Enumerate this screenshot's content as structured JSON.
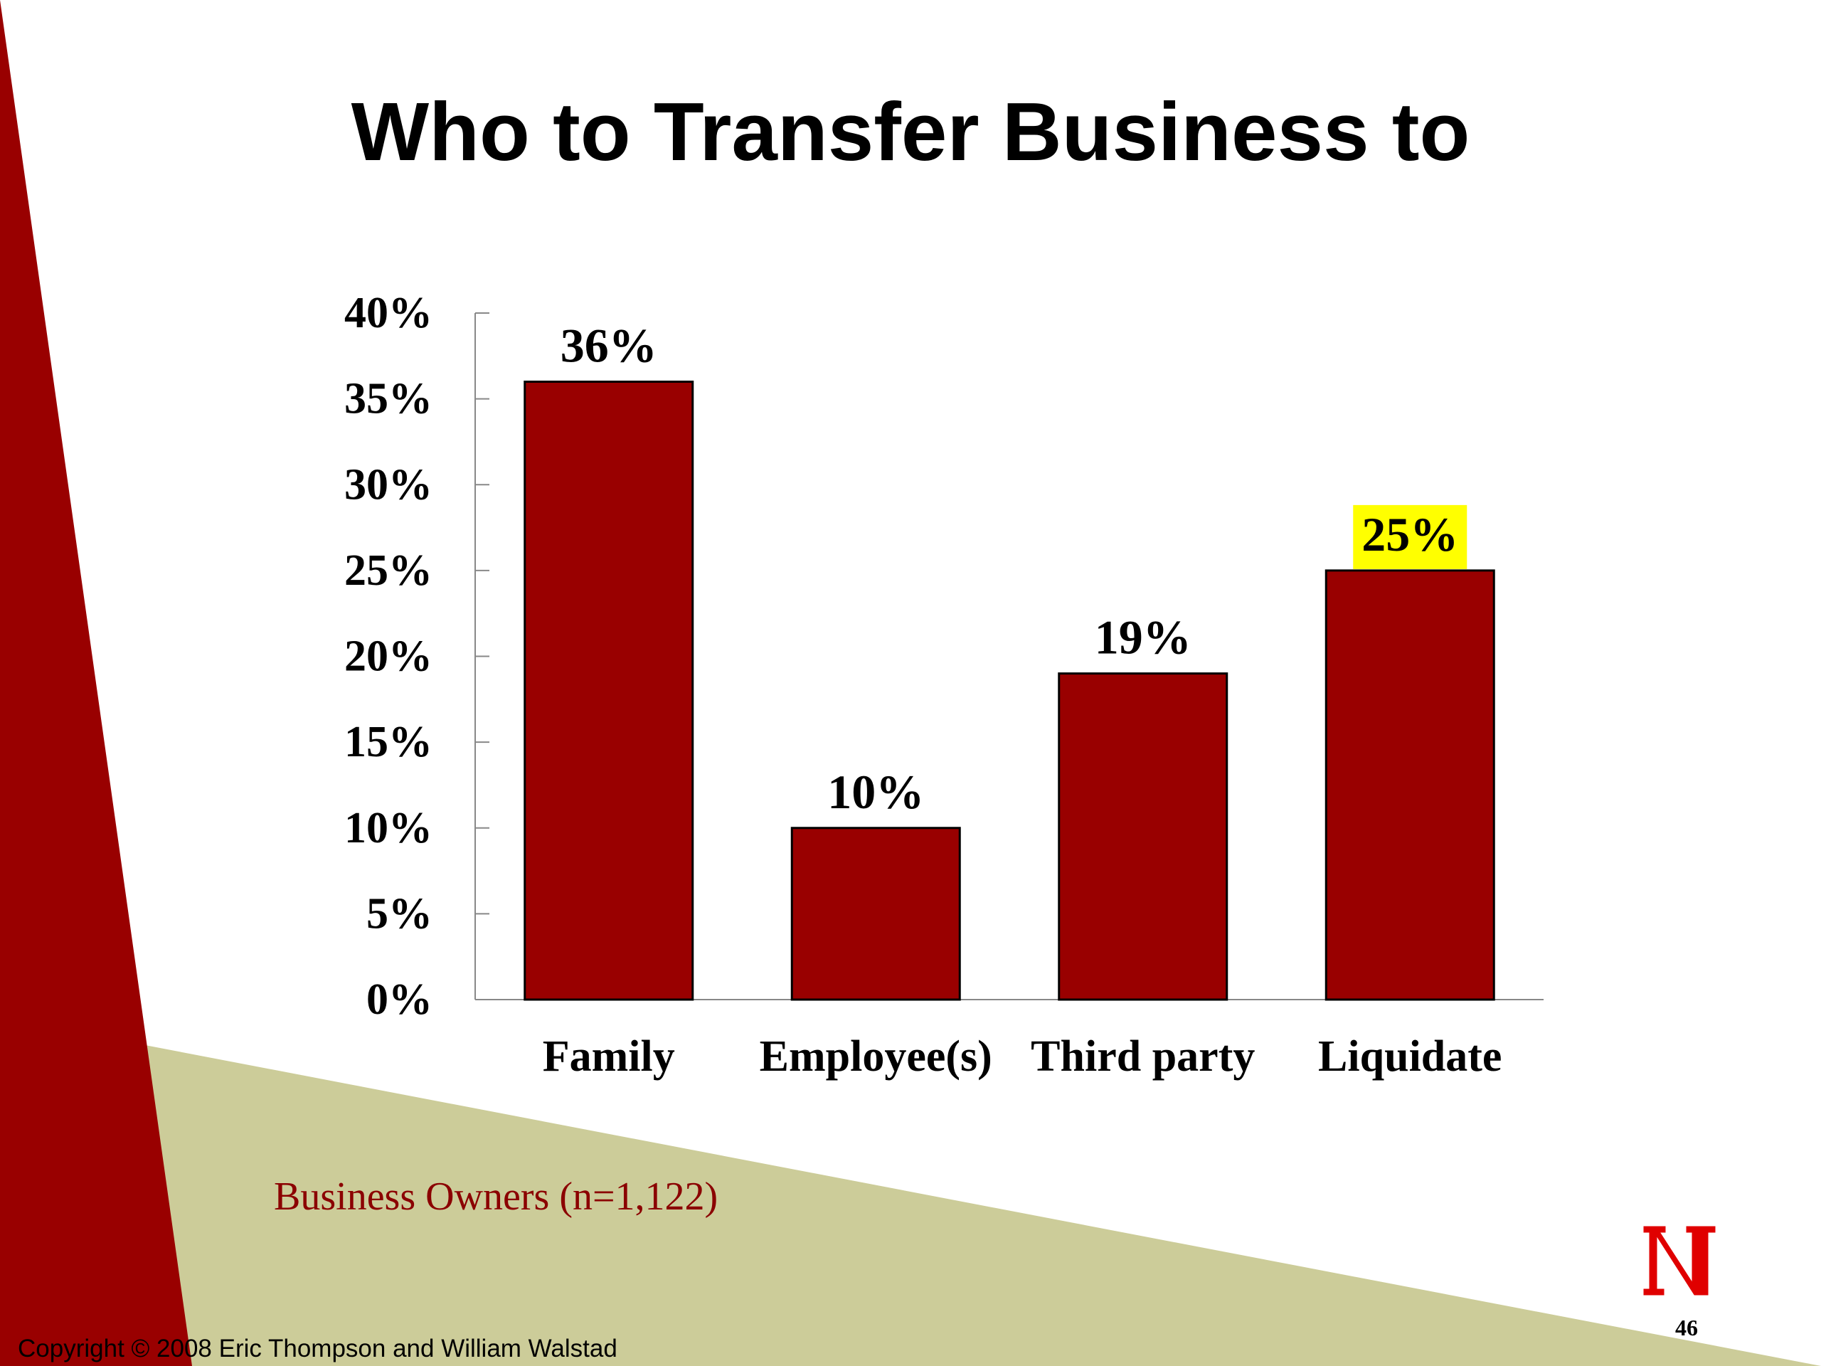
{
  "slide": {
    "title": "Who to Transfer Business to",
    "caption": "Business Owners (n=1,122)",
    "page_number": "46",
    "copyright": "Copyright © 2008 Eric Thompson and William Walstad",
    "logo_text": "N"
  },
  "colors": {
    "bar": "#990000",
    "highlight": "#ffff00",
    "left_band": "#990000",
    "bottom_band": "#cccc99",
    "caption": "#8b0000"
  },
  "chart_data": {
    "type": "bar",
    "title": "",
    "xlabel": "",
    "ylabel": "",
    "categories": [
      "Family",
      "Employee(s)",
      "Third party",
      "Liquidate"
    ],
    "values": [
      36,
      10,
      19,
      25
    ],
    "data_labels": [
      "36%",
      "10%",
      "19%",
      "25%"
    ],
    "highlighted_label_index": 3,
    "ylim": [
      0,
      40
    ],
    "yticks": [
      0,
      5,
      10,
      15,
      20,
      25,
      30,
      35,
      40
    ],
    "ytick_labels": [
      "0%",
      "5%",
      "10%",
      "15%",
      "20%",
      "25%",
      "30%",
      "35%",
      "40%"
    ],
    "grid": false,
    "legend": "none"
  }
}
